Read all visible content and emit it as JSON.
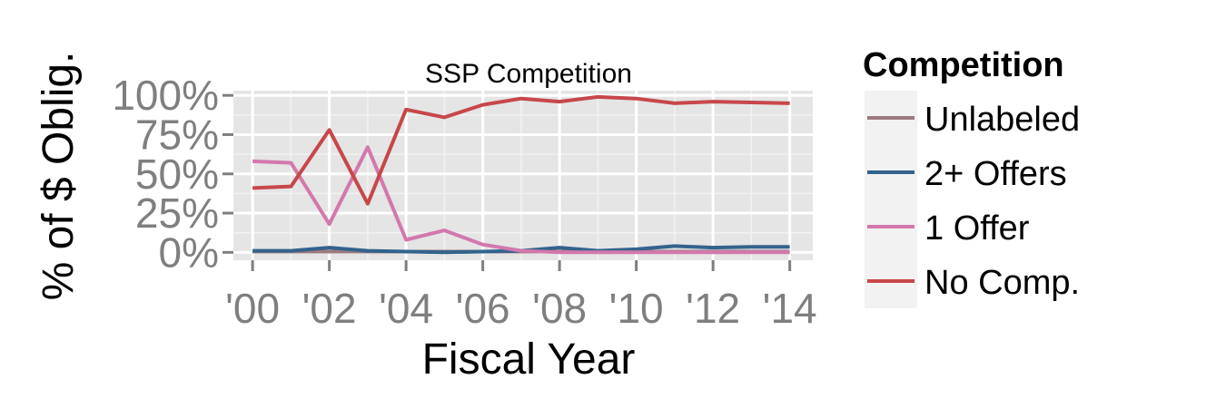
{
  "chart_data": {
    "type": "line",
    "title": "SSP Competition",
    "xlabel": "Fiscal Year",
    "ylabel": "% of $ Oblig.",
    "x": [
      2000,
      2001,
      2002,
      2003,
      2004,
      2005,
      2006,
      2007,
      2008,
      2009,
      2010,
      2011,
      2012,
      2013,
      2014
    ],
    "x_tick_values": [
      2000,
      2002,
      2004,
      2006,
      2008,
      2010,
      2012,
      2014
    ],
    "x_tick_labels": [
      "'00",
      "'02",
      "'04",
      "'06",
      "'08",
      "'10",
      "'12",
      "'14"
    ],
    "xlim": [
      1999.5,
      2014.6
    ],
    "y_tick_values": [
      0,
      25,
      50,
      75,
      100
    ],
    "y_tick_labels": [
      "0%",
      "25%",
      "50%",
      "75%",
      "100%"
    ],
    "ylim": [
      -5,
      103
    ],
    "grid": true,
    "legend": {
      "title": "Competition",
      "placement": "right"
    },
    "series": [
      {
        "name": "Unlabeled",
        "color": "#9b7b80",
        "values": [
          0.5,
          0.5,
          0.5,
          0.5,
          0.5,
          0.5,
          0.5,
          0.5,
          0.5,
          0.5,
          0.5,
          0.5,
          0.5,
          0.5,
          0.5
        ]
      },
      {
        "name": "2+ Offers",
        "color": "#33638d",
        "values": [
          1,
          1,
          3,
          1,
          0.5,
          0,
          0.5,
          1,
          3,
          1,
          2,
          4,
          3,
          3.5,
          3.5
        ]
      },
      {
        "name": "1 Offer",
        "color": "#d378ad",
        "values": [
          58,
          57,
          18,
          67,
          8,
          14,
          5,
          1,
          0,
          0,
          0,
          0,
          0,
          0,
          0
        ]
      },
      {
        "name": "No Comp.",
        "color": "#c7474a",
        "values": [
          41,
          42,
          78,
          31,
          91,
          86,
          94,
          98,
          96,
          99,
          98,
          95,
          96,
          95.5,
          95
        ]
      }
    ]
  }
}
